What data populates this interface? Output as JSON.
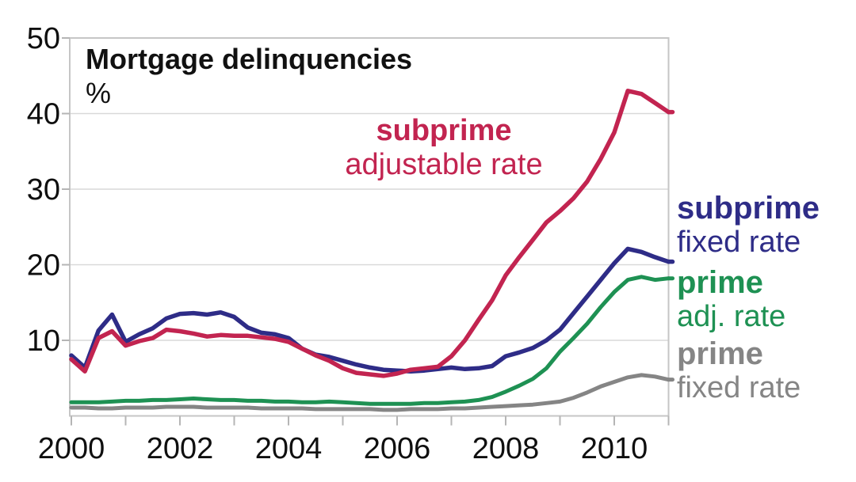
{
  "chart_data": {
    "type": "line",
    "title": "Mortgage delinquencies",
    "unit_label": "%",
    "xlim": [
      2000,
      2011
    ],
    "ylim": [
      0,
      50
    ],
    "grid": "horizontal",
    "x_tick_years": [
      2000,
      2001,
      2002,
      2003,
      2004,
      2005,
      2006,
      2007,
      2008,
      2009,
      2010,
      2011
    ],
    "x_label_years": [
      2000,
      2002,
      2004,
      2006,
      2008,
      2010
    ],
    "y_ticks": [
      10,
      20,
      30,
      40,
      50
    ],
    "x": [
      2000,
      2000.25,
      2000.5,
      2000.75,
      2001,
      2001.25,
      2001.5,
      2001.75,
      2002,
      2002.25,
      2002.5,
      2002.75,
      2003,
      2003.25,
      2003.5,
      2003.75,
      2004,
      2004.25,
      2004.5,
      2004.75,
      2005,
      2005.25,
      2005.5,
      2005.75,
      2006,
      2006.25,
      2006.5,
      2006.75,
      2007,
      2007.25,
      2007.5,
      2007.75,
      2008,
      2008.25,
      2008.5,
      2008.75,
      2009,
      2009.25,
      2009.5,
      2009.75,
      2010,
      2010.25,
      2010.5,
      2010.75,
      2011
    ],
    "series": [
      {
        "id": "subprime-adjustable-rate",
        "label": [
          "subprime",
          "adjustable rate"
        ],
        "color": "#c22450",
        "label_placement": "inside-plot",
        "values": [
          7.5,
          5.9,
          10.3,
          11.2,
          9.3,
          9.9,
          10.3,
          11.4,
          11.2,
          10.9,
          10.5,
          10.7,
          10.6,
          10.6,
          10.4,
          10.2,
          9.8,
          8.9,
          8.0,
          7.3,
          6.3,
          5.7,
          5.5,
          5.3,
          5.6,
          6.1,
          6.3,
          6.5,
          7.9,
          10.0,
          12.7,
          15.3,
          18.6,
          21.0,
          23.3,
          25.6,
          27.1,
          28.8,
          31.0,
          34.0,
          37.5,
          43.0,
          42.6,
          41.4,
          40.2
        ]
      },
      {
        "id": "subprime-fixed-rate",
        "label": [
          "subprime",
          "fixed rate"
        ],
        "color": "#2e2c87",
        "label_placement": "right-margin",
        "values": [
          8.0,
          6.4,
          11.3,
          13.4,
          9.8,
          10.8,
          11.6,
          12.9,
          13.5,
          13.6,
          13.4,
          13.7,
          13.1,
          11.7,
          11.0,
          10.8,
          10.3,
          8.9,
          8.1,
          7.8,
          7.3,
          6.8,
          6.4,
          6.1,
          6.0,
          5.9,
          6.0,
          6.2,
          6.4,
          6.2,
          6.3,
          6.6,
          7.9,
          8.4,
          9.0,
          10.0,
          11.4,
          13.6,
          15.8,
          18.0,
          20.2,
          22.1,
          21.7,
          21.0,
          20.4
        ]
      },
      {
        "id": "prime-adjustable-rate",
        "label": [
          "prime",
          "adj. rate"
        ],
        "color": "#1e9153",
        "label_placement": "right-margin",
        "values": [
          1.8,
          1.8,
          1.8,
          1.9,
          2.0,
          2.0,
          2.1,
          2.1,
          2.2,
          2.3,
          2.2,
          2.1,
          2.1,
          2.0,
          2.0,
          1.9,
          1.9,
          1.8,
          1.8,
          1.9,
          1.8,
          1.7,
          1.6,
          1.6,
          1.6,
          1.6,
          1.7,
          1.7,
          1.8,
          1.9,
          2.1,
          2.5,
          3.2,
          4.0,
          4.9,
          6.3,
          8.5,
          10.3,
          12.2,
          14.4,
          16.4,
          18.0,
          18.4,
          18.0,
          18.2
        ]
      },
      {
        "id": "prime-fixed-rate",
        "label": [
          "prime",
          "fixed rate"
        ],
        "color": "#858585",
        "label_placement": "right-margin",
        "values": [
          1.1,
          1.1,
          1.0,
          1.0,
          1.1,
          1.1,
          1.1,
          1.2,
          1.2,
          1.2,
          1.1,
          1.1,
          1.1,
          1.1,
          1.0,
          1.0,
          1.0,
          1.0,
          0.9,
          0.9,
          0.9,
          0.9,
          0.9,
          0.8,
          0.8,
          0.9,
          0.9,
          0.9,
          1.0,
          1.0,
          1.1,
          1.2,
          1.3,
          1.4,
          1.5,
          1.7,
          1.9,
          2.4,
          3.1,
          3.9,
          4.5,
          5.1,
          5.4,
          5.2,
          4.8
        ]
      }
    ],
    "style_colors": {
      "grid": "#d9d9d9",
      "border": "#c6c6c6",
      "tick": "#b5b5b5",
      "axis_text": "#0f0f0f"
    }
  }
}
